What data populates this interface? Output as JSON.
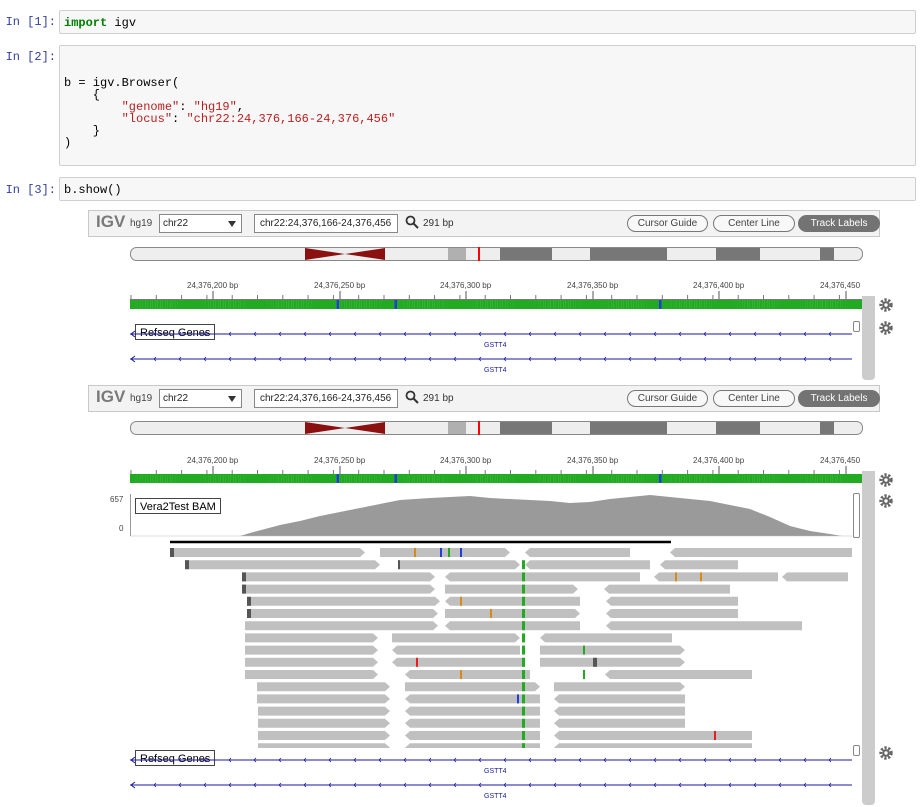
{
  "cells": [
    {
      "prompt": "In [1]:",
      "kw": "import",
      "rest": " igv"
    },
    {
      "prompt": "In [2]:",
      "lines": [
        "b = igv.Browser(",
        "    {",
        "    \"genome\": \"hg19\",",
        "    \"locus\": \"chr22:24,376,166-24,376,456\"",
        "    }",
        ")"
      ]
    },
    {
      "prompt": "In [3]:",
      "code": "b.show()"
    }
  ],
  "code2": {
    "l1": "b = igv.Browser(",
    "l2": "    {",
    "l3_pre": "        ",
    "l3_key": "\"genome\"",
    "l3_mid": ": ",
    "l3_val": "\"hg19\"",
    "l3_end": ",",
    "l4_pre": "        ",
    "l4_key": "\"locus\"",
    "l4_mid": ": ",
    "l4_val": "\"chr22:24,376,166-24,376,456\"",
    "l5": "    }",
    "l6": ")"
  },
  "browsers": [
    {
      "logo": "IGV",
      "genome": "hg19",
      "chromosome": "chr22",
      "locus": "chr22:24,376,166-24,376,456",
      "width_bp": "291 bp",
      "buttons": {
        "cursor_guide": "Cursor Guide",
        "center_line": "Center Line",
        "track_labels": "Track Labels"
      },
      "ruler_ticks": [
        "24,376,200 bp",
        "24,376,250 bp",
        "24,376,300 bp",
        "24,376,350 bp",
        "24,376,400 bp",
        "24,376,450"
      ],
      "tracks": {
        "refseq": "Refseq Genes",
        "gene_name": "GSTT4"
      }
    },
    {
      "logo": "IGV",
      "genome": "hg19",
      "chromosome": "chr22",
      "locus": "chr22:24,376,166-24,376,456",
      "width_bp": "291 bp",
      "buttons": {
        "cursor_guide": "Cursor Guide",
        "center_line": "Center Line",
        "track_labels": "Track Labels"
      },
      "ruler_ticks": [
        "24,376,200 bp",
        "24,376,250 bp",
        "24,376,300 bp",
        "24,376,350 bp",
        "24,376,400 bp",
        "24,376,450"
      ],
      "tracks": {
        "bam": "Vera2Test BAM",
        "coverage_max": "657",
        "coverage_min": "0",
        "refseq": "Refseq Genes",
        "gene_name": "GSTT4"
      }
    }
  ],
  "colors": {
    "A": "#22aa22",
    "C": "#1f3fd6",
    "G": "#d68a1a",
    "T": "#e81c1c",
    "read": "#c0c0c0",
    "coverage": "#9a9a9a",
    "centromere": "#8b1010",
    "active_button": "#737373"
  },
  "icons": {
    "search": "search-icon",
    "gear": "gear-icon",
    "dropdown": "chevron-down-icon"
  }
}
